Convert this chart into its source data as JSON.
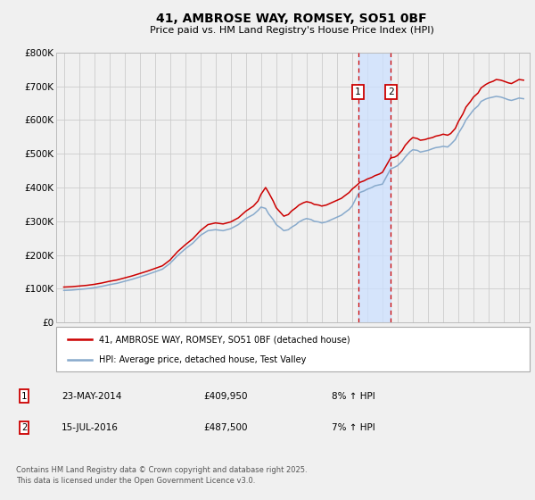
{
  "title": "41, AMBROSE WAY, ROMSEY, SO51 0BF",
  "subtitle": "Price paid vs. HM Land Registry's House Price Index (HPI)",
  "ylabel_ticks": [
    "£0",
    "£100K",
    "£200K",
    "£300K",
    "£400K",
    "£500K",
    "£600K",
    "£700K",
    "£800K"
  ],
  "ytick_values": [
    0,
    100000,
    200000,
    300000,
    400000,
    500000,
    600000,
    700000,
    800000
  ],
  "ylim": [
    0,
    800000
  ],
  "xlim_start": 1994.5,
  "xlim_end": 2025.7,
  "red_line_color": "#cc0000",
  "blue_line_color": "#88aacc",
  "shade_color": "#cce0ff",
  "vline_color": "#cc0000",
  "grid_color": "#cccccc",
  "background_color": "#f0f0f0",
  "plot_bg_color": "#f0f0f0",
  "transaction1": {
    "date": "23-MAY-2014",
    "price": 409950,
    "pct": "8%",
    "label": "1"
  },
  "transaction2": {
    "date": "15-JUL-2016",
    "price": 487500,
    "pct": "7%",
    "label": "2"
  },
  "vline1_x": 2014.39,
  "vline2_x": 2016.54,
  "legend_red": "41, AMBROSE WAY, ROMSEY, SO51 0BF (detached house)",
  "legend_blue": "HPI: Average price, detached house, Test Valley",
  "footer": "Contains HM Land Registry data © Crown copyright and database right 2025.\nThis data is licensed under the Open Government Licence v3.0.",
  "red_data": [
    [
      1995.0,
      105000
    ],
    [
      1995.5,
      106000
    ],
    [
      1996.0,
      108000
    ],
    [
      1996.5,
      110000
    ],
    [
      1997.0,
      113000
    ],
    [
      1997.5,
      117000
    ],
    [
      1998.0,
      122000
    ],
    [
      1998.5,
      126000
    ],
    [
      1999.0,
      132000
    ],
    [
      1999.5,
      138000
    ],
    [
      2000.0,
      145000
    ],
    [
      2000.5,
      152000
    ],
    [
      2001.0,
      160000
    ],
    [
      2001.5,
      168000
    ],
    [
      2002.0,
      185000
    ],
    [
      2002.5,
      210000
    ],
    [
      2003.0,
      230000
    ],
    [
      2003.5,
      248000
    ],
    [
      2004.0,
      272000
    ],
    [
      2004.5,
      290000
    ],
    [
      2005.0,
      295000
    ],
    [
      2005.5,
      292000
    ],
    [
      2006.0,
      298000
    ],
    [
      2006.5,
      310000
    ],
    [
      2007.0,
      330000
    ],
    [
      2007.5,
      345000
    ],
    [
      2007.8,
      360000
    ],
    [
      2008.0,
      380000
    ],
    [
      2008.3,
      400000
    ],
    [
      2008.5,
      385000
    ],
    [
      2008.8,
      360000
    ],
    [
      2009.0,
      340000
    ],
    [
      2009.3,
      325000
    ],
    [
      2009.5,
      315000
    ],
    [
      2009.8,
      320000
    ],
    [
      2010.0,
      330000
    ],
    [
      2010.3,
      340000
    ],
    [
      2010.5,
      348000
    ],
    [
      2010.8,
      355000
    ],
    [
      2011.0,
      358000
    ],
    [
      2011.3,
      355000
    ],
    [
      2011.5,
      350000
    ],
    [
      2011.8,
      348000
    ],
    [
      2012.0,
      345000
    ],
    [
      2012.3,
      348000
    ],
    [
      2012.5,
      352000
    ],
    [
      2012.8,
      358000
    ],
    [
      2013.0,
      362000
    ],
    [
      2013.3,
      368000
    ],
    [
      2013.5,
      375000
    ],
    [
      2013.8,
      385000
    ],
    [
      2014.0,
      395000
    ],
    [
      2014.39,
      409950
    ],
    [
      2014.5,
      415000
    ],
    [
      2014.8,
      420000
    ],
    [
      2015.0,
      425000
    ],
    [
      2015.3,
      430000
    ],
    [
      2015.5,
      435000
    ],
    [
      2015.8,
      440000
    ],
    [
      2016.0,
      445000
    ],
    [
      2016.54,
      487500
    ],
    [
      2016.8,
      490000
    ],
    [
      2017.0,
      495000
    ],
    [
      2017.3,
      510000
    ],
    [
      2017.5,
      525000
    ],
    [
      2017.8,
      540000
    ],
    [
      2018.0,
      548000
    ],
    [
      2018.3,
      545000
    ],
    [
      2018.5,
      540000
    ],
    [
      2018.8,
      542000
    ],
    [
      2019.0,
      545000
    ],
    [
      2019.3,
      548000
    ],
    [
      2019.5,
      552000
    ],
    [
      2019.8,
      555000
    ],
    [
      2020.0,
      558000
    ],
    [
      2020.3,
      555000
    ],
    [
      2020.5,
      560000
    ],
    [
      2020.8,
      575000
    ],
    [
      2021.0,
      595000
    ],
    [
      2021.3,
      618000
    ],
    [
      2021.5,
      638000
    ],
    [
      2021.8,
      655000
    ],
    [
      2022.0,
      668000
    ],
    [
      2022.3,
      680000
    ],
    [
      2022.5,
      695000
    ],
    [
      2022.8,
      705000
    ],
    [
      2023.0,
      710000
    ],
    [
      2023.3,
      715000
    ],
    [
      2023.5,
      720000
    ],
    [
      2023.8,
      718000
    ],
    [
      2024.0,
      715000
    ],
    [
      2024.3,
      710000
    ],
    [
      2024.5,
      708000
    ],
    [
      2024.8,
      715000
    ],
    [
      2025.0,
      720000
    ],
    [
      2025.3,
      718000
    ]
  ],
  "blue_data": [
    [
      1995.0,
      95000
    ],
    [
      1995.5,
      96000
    ],
    [
      1996.0,
      98000
    ],
    [
      1996.5,
      100000
    ],
    [
      1997.0,
      103000
    ],
    [
      1997.5,
      107000
    ],
    [
      1998.0,
      112000
    ],
    [
      1998.5,
      116000
    ],
    [
      1999.0,
      122000
    ],
    [
      1999.5,
      128000
    ],
    [
      2000.0,
      135000
    ],
    [
      2000.5,
      142000
    ],
    [
      2001.0,
      150000
    ],
    [
      2001.5,
      158000
    ],
    [
      2002.0,
      175000
    ],
    [
      2002.5,
      198000
    ],
    [
      2003.0,
      218000
    ],
    [
      2003.5,
      235000
    ],
    [
      2004.0,
      258000
    ],
    [
      2004.5,
      272000
    ],
    [
      2005.0,
      275000
    ],
    [
      2005.5,
      272000
    ],
    [
      2006.0,
      278000
    ],
    [
      2006.5,
      290000
    ],
    [
      2007.0,
      308000
    ],
    [
      2007.5,
      320000
    ],
    [
      2007.8,
      332000
    ],
    [
      2008.0,
      342000
    ],
    [
      2008.3,
      338000
    ],
    [
      2008.5,
      322000
    ],
    [
      2008.8,
      305000
    ],
    [
      2009.0,
      290000
    ],
    [
      2009.3,
      280000
    ],
    [
      2009.5,
      272000
    ],
    [
      2009.8,
      275000
    ],
    [
      2010.0,
      282000
    ],
    [
      2010.3,
      290000
    ],
    [
      2010.5,
      298000
    ],
    [
      2010.8,
      305000
    ],
    [
      2011.0,
      308000
    ],
    [
      2011.3,
      305000
    ],
    [
      2011.5,
      300000
    ],
    [
      2011.8,
      298000
    ],
    [
      2012.0,
      295000
    ],
    [
      2012.3,
      298000
    ],
    [
      2012.5,
      302000
    ],
    [
      2012.8,
      308000
    ],
    [
      2013.0,
      312000
    ],
    [
      2013.3,
      318000
    ],
    [
      2013.5,
      325000
    ],
    [
      2013.8,
      335000
    ],
    [
      2014.0,
      345000
    ],
    [
      2014.39,
      380000
    ],
    [
      2014.5,
      385000
    ],
    [
      2014.8,
      390000
    ],
    [
      2015.0,
      395000
    ],
    [
      2015.3,
      400000
    ],
    [
      2015.5,
      405000
    ],
    [
      2015.8,
      408000
    ],
    [
      2016.0,
      410000
    ],
    [
      2016.54,
      455000
    ],
    [
      2016.8,
      460000
    ],
    [
      2017.0,
      465000
    ],
    [
      2017.3,
      478000
    ],
    [
      2017.5,
      490000
    ],
    [
      2017.8,
      505000
    ],
    [
      2018.0,
      512000
    ],
    [
      2018.3,
      510000
    ],
    [
      2018.5,
      505000
    ],
    [
      2018.8,
      508000
    ],
    [
      2019.0,
      510000
    ],
    [
      2019.3,
      515000
    ],
    [
      2019.5,
      518000
    ],
    [
      2019.8,
      520000
    ],
    [
      2020.0,
      522000
    ],
    [
      2020.3,
      520000
    ],
    [
      2020.5,
      528000
    ],
    [
      2020.8,
      542000
    ],
    [
      2021.0,
      560000
    ],
    [
      2021.3,
      582000
    ],
    [
      2021.5,
      600000
    ],
    [
      2021.8,
      618000
    ],
    [
      2022.0,
      630000
    ],
    [
      2022.3,
      642000
    ],
    [
      2022.5,
      655000
    ],
    [
      2022.8,
      662000
    ],
    [
      2023.0,
      665000
    ],
    [
      2023.3,
      668000
    ],
    [
      2023.5,
      670000
    ],
    [
      2023.8,
      668000
    ],
    [
      2024.0,
      665000
    ],
    [
      2024.3,
      660000
    ],
    [
      2024.5,
      658000
    ],
    [
      2024.8,
      662000
    ],
    [
      2025.0,
      665000
    ],
    [
      2025.3,
      663000
    ]
  ]
}
